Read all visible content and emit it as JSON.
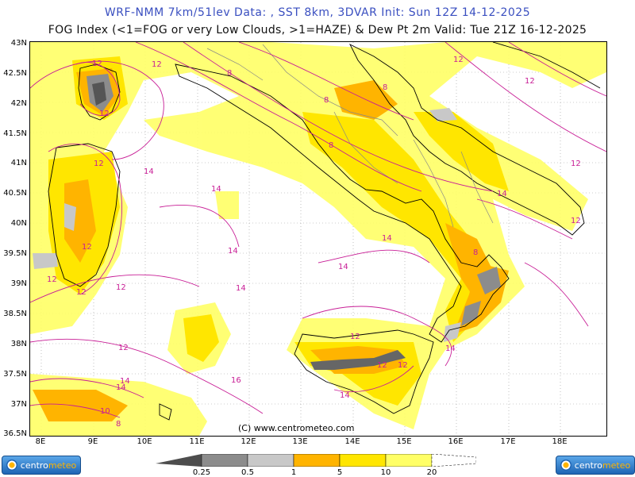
{
  "header": {
    "title_line1": "WRF-NMM 7km/51lev  Data: , SST 8km, 3DVAR  Init: Sun 12Z 14-12-2025",
    "title_line2": "FOG Index (<1=FOG or very Low Clouds, >1=HAZE) & Dew Pt 2m  Valid: Tue 21Z 16-12-2025"
  },
  "map": {
    "lat_labels": [
      "43N",
      "42.5N",
      "42N",
      "41.5N",
      "41N",
      "40.5N",
      "40N",
      "39.5N",
      "39N",
      "38.5N",
      "38N",
      "37.5N",
      "37N",
      "36.5N"
    ],
    "lon_labels": [
      "8E",
      "9E",
      "10E",
      "11E",
      "12E",
      "13E",
      "14E",
      "15E",
      "16E",
      "17E",
      "18E"
    ],
    "copyright": "(C) www.centrometeo.com",
    "contour_labels": [
      "12",
      "12",
      "8",
      "8",
      "8",
      "12",
      "12",
      "12",
      "12",
      "14",
      "14",
      "14",
      "14",
      "14",
      "12",
      "12",
      "12",
      "12",
      "12",
      "14",
      "14",
      "14",
      "16",
      "12",
      "12",
      "12",
      "14",
      "14",
      "10",
      "8",
      "8",
      "8",
      "12",
      "12",
      "14"
    ],
    "colors": {
      "fog_dark": "#555555",
      "fog_mid": "#8c8c8c",
      "fog_light": "#c8c8c8",
      "haze_orange": "#ffb400",
      "haze_yellow": "#ffe600",
      "haze_pale": "#ffff66",
      "contour": "#c81e96",
      "coast": "#000000",
      "border": "#888888"
    }
  },
  "colorbar": {
    "labels": [
      "0.25",
      "0.5",
      "1",
      "5",
      "10",
      "20"
    ],
    "colors": [
      "#4d4d4d",
      "#8c8c8c",
      "#c8c8c8",
      "#ffb400",
      "#ffe600",
      "#ffff66"
    ]
  },
  "logos": {
    "left_text_a": "centro",
    "left_text_b": "meteo",
    "right_text_a": "centro",
    "right_text_b": "meteo"
  }
}
